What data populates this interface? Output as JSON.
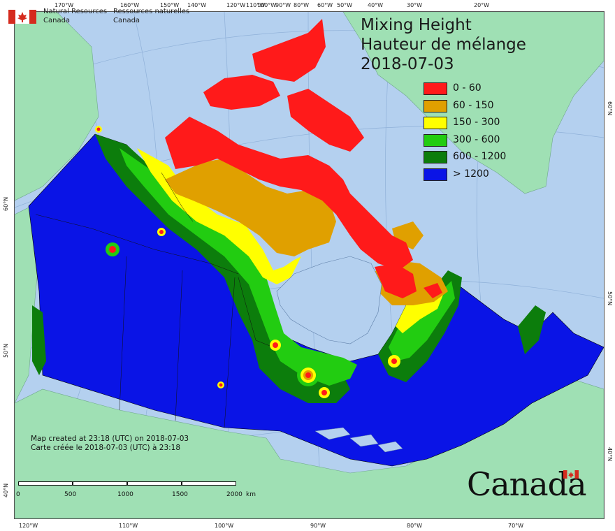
{
  "agency": {
    "en_line1": "Natural Resources",
    "en_line2": "Canada",
    "fr_line1": "Ressources naturelles",
    "fr_line2": "Canada",
    "flag_icon": "canada-flag-icon"
  },
  "title": {
    "line1": "Mixing Height",
    "line2": "Hauteur de mélange",
    "date": "2018-07-03"
  },
  "legend": [
    {
      "label": "0 - 60",
      "color": "#ff1a1a"
    },
    {
      "label": "60 - 150",
      "color": "#e0a000"
    },
    {
      "label": "150 - 300",
      "color": "#ffff00"
    },
    {
      "label": "300 - 600",
      "color": "#22cc11"
    },
    {
      "label": "600 - 1200",
      "color": "#0c7d0c"
    },
    {
      "label": "> 1200",
      "color": "#0a14e6"
    }
  ],
  "colors": {
    "ocean": "#b4d0ef",
    "foreign_land": "#9fe0b4"
  },
  "top_ticks": [
    "170°W",
    "160°W",
    "150°W",
    "140°W",
    "120°W",
    "110°W",
    "100°W",
    "90°W",
    "80°W",
    "60°W",
    "50°W",
    "40°W",
    "30°W",
    "20°W"
  ],
  "bottom_ticks": [
    "120°W",
    "110°W",
    "100°W",
    "90°W",
    "80°W",
    "70°W"
  ],
  "left_ticks": [
    "60°N",
    "50°N",
    "40°N"
  ],
  "right_ticks": [
    "60°N",
    "50°N",
    "40°N"
  ],
  "created": {
    "en": "Map created at 23:18 (UTC) on 2018-07-03",
    "fr": "Carte créée le 2018-07-03 (UTC) à 23:18"
  },
  "scale": {
    "labels": [
      "0",
      "500",
      "1000",
      "1500",
      "2000"
    ],
    "unit": "km"
  },
  "wordmark": "Canada"
}
